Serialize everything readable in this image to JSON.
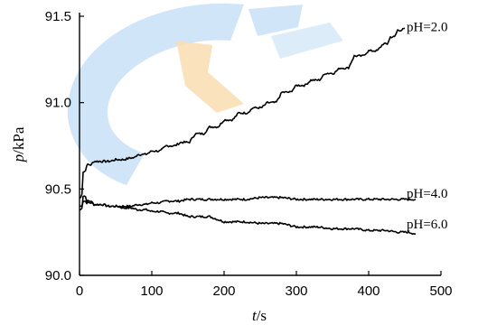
{
  "chart_data": {
    "type": "line",
    "xlabel": {
      "var": "t",
      "unit": "/s"
    },
    "ylabel": {
      "var": "p",
      "unit": "/kPa"
    },
    "xlim": [
      0,
      500
    ],
    "ylim": [
      90.0,
      91.5
    ],
    "x_ticks": [
      0,
      100,
      200,
      300,
      400,
      500
    ],
    "y_ticks": [
      90.0,
      90.5,
      91.0,
      91.5
    ],
    "y_tick_labels": [
      "90.0",
      "90.5",
      "91.0",
      "91.5"
    ],
    "grid": false,
    "series": [
      {
        "name": "pH=2.0",
        "x": [
          0,
          5,
          10,
          20,
          30,
          50,
          70,
          80,
          100,
          120,
          140,
          160,
          180,
          200,
          220,
          240,
          260,
          280,
          300,
          320,
          340,
          360,
          380,
          400,
          420,
          430,
          440,
          450
        ],
        "y": [
          90.45,
          90.6,
          90.64,
          90.66,
          90.66,
          90.67,
          90.68,
          90.7,
          90.72,
          90.75,
          90.77,
          90.82,
          90.86,
          90.9,
          90.94,
          90.97,
          91.0,
          91.06,
          91.1,
          91.13,
          91.17,
          91.2,
          91.27,
          91.3,
          91.34,
          91.38,
          91.42,
          91.43
        ]
      },
      {
        "name": "pH=4.0",
        "x": [
          0,
          5,
          10,
          20,
          40,
          60,
          80,
          100,
          120,
          150,
          200,
          250,
          300,
          350,
          400,
          450,
          465
        ],
        "y": [
          90.38,
          90.46,
          90.43,
          90.41,
          90.4,
          90.4,
          90.41,
          90.42,
          90.43,
          90.44,
          90.44,
          90.45,
          90.44,
          90.44,
          90.44,
          90.44,
          90.44
        ]
      },
      {
        "name": "pH=6.0",
        "x": [
          0,
          5,
          10,
          20,
          40,
          60,
          80,
          100,
          120,
          150,
          200,
          250,
          300,
          350,
          400,
          440,
          465
        ],
        "y": [
          90.4,
          90.43,
          90.42,
          90.41,
          90.4,
          90.39,
          90.38,
          90.37,
          90.36,
          90.34,
          90.31,
          90.3,
          90.28,
          90.27,
          90.26,
          90.25,
          90.24
        ]
      }
    ]
  }
}
